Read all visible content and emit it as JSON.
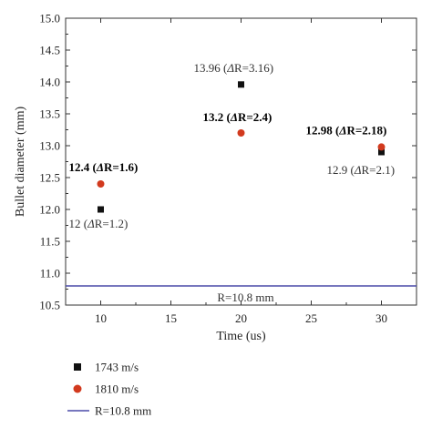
{
  "chart_data": {
    "type": "scatter",
    "xlabel": "Time (us)",
    "ylabel": "Bullet diameter (mm)",
    "xlim": [
      7.5,
      32.5
    ],
    "ylim": [
      10.5,
      15.0
    ],
    "xticks": [
      10,
      15,
      20,
      25,
      30
    ],
    "xtick_labels": [
      "10",
      "15",
      "20",
      "25",
      "30"
    ],
    "yticks": [
      10.5,
      11.0,
      11.5,
      12.0,
      12.5,
      13.0,
      13.5,
      14.0,
      14.5,
      15.0
    ],
    "ytick_labels": [
      "10.5",
      "11.0",
      "11.5",
      "12.0",
      "12.5",
      "13.0",
      "13.5",
      "14.0",
      "14.5",
      "15.0"
    ],
    "grid": false,
    "series": [
      {
        "name": "1743 m/s",
        "marker": "square",
        "color": "#111111",
        "x": [
          10,
          20,
          30
        ],
        "y": [
          12.0,
          13.96,
          12.9
        ]
      },
      {
        "name": "1810 m/s",
        "marker": "circle",
        "color": "#d23a1e",
        "x": [
          10,
          20,
          30
        ],
        "y": [
          12.4,
          13.2,
          12.98
        ]
      }
    ],
    "reference_line": {
      "name": "R=10.8 mm",
      "y": 10.8,
      "color": "#4a4aa8",
      "label": "R=10.8 mm"
    },
    "annotations": [
      {
        "prefix": "12 (",
        "value": "ΔR=1.2)",
        "x": 10,
        "y": 12.0,
        "bold": false
      },
      {
        "prefix": "12.4 (",
        "value": "ΔR=1.6)",
        "x": 10,
        "y": 12.4,
        "bold": true
      },
      {
        "prefix": "13.96 (",
        "value": "ΔR=3.16)",
        "x": 20,
        "y": 13.96,
        "bold": false
      },
      {
        "prefix": "13.2 (",
        "value": "ΔR=2.4)",
        "x": 20,
        "y": 13.2,
        "bold": true
      },
      {
        "prefix": "12.98 (",
        "value": "ΔR=2.18)",
        "x": 30,
        "y": 12.98,
        "bold": true
      },
      {
        "prefix": "12.9 (",
        "value": "ΔR=2.1)",
        "x": 30,
        "y": 12.9,
        "bold": false
      }
    ],
    "legend": {
      "position": "bottom-left",
      "entries": [
        "1743 m/s",
        "1810 m/s",
        "R=10.8 mm"
      ]
    }
  }
}
